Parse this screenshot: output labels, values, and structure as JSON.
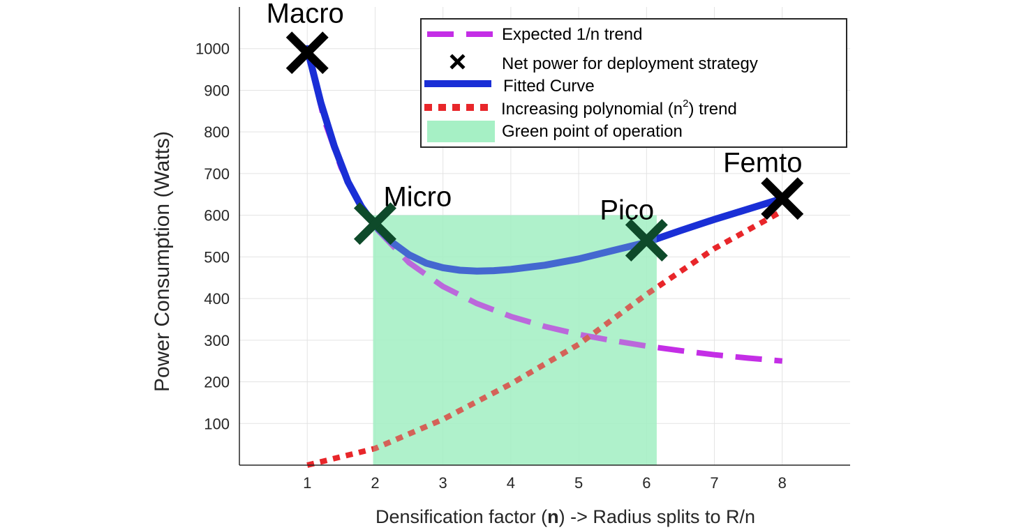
{
  "chart_data": {
    "type": "line",
    "xlabel_parts": [
      "Densification factor (",
      "n",
      ") -> Radius splits to R/n"
    ],
    "ylabel": "Power Consumption (Watts)",
    "xlim": [
      0,
      9
    ],
    "ylim": [
      0,
      1100
    ],
    "xticks": [
      1,
      2,
      3,
      4,
      5,
      6,
      7,
      8
    ],
    "yticks": [
      100,
      200,
      300,
      400,
      500,
      600,
      700,
      800,
      900,
      1000
    ],
    "grid": true,
    "legend_position": "top-right",
    "series": [
      {
        "name": "Expected 1/n trend",
        "style": "dashed",
        "color": "#c42ee6",
        "x": [
          1,
          1.25,
          1.5,
          1.75,
          2,
          2.5,
          3,
          3.5,
          4,
          4.5,
          5,
          5.5,
          6,
          6.5,
          7,
          7.5,
          8
        ],
        "y": [
          1000,
          829,
          714,
          633,
          571,
          486,
          429,
          388,
          357,
          333,
          314,
          299,
          286,
          275,
          265,
          257,
          250
        ]
      },
      {
        "name": "Net power for deployment strategy",
        "style": "marker-x",
        "color": "#000000",
        "x": [
          1,
          2,
          6,
          8
        ],
        "y": [
          990,
          580,
          540,
          640
        ],
        "labels": [
          "Macro",
          "Micro",
          "Pico",
          "Femto"
        ]
      },
      {
        "name": "Fitted Curve",
        "style": "solid",
        "color": "#1a2fd6",
        "x": [
          1,
          1.2,
          1.4,
          1.6,
          1.8,
          2,
          2.25,
          2.5,
          2.75,
          3,
          3.25,
          3.5,
          3.75,
          4,
          4.5,
          5,
          5.5,
          6,
          6.5,
          7,
          7.5,
          8
        ],
        "y": [
          1000,
          870,
          765,
          680,
          620,
          575,
          535,
          505,
          485,
          474,
          468,
          466,
          467,
          470,
          480,
          495,
          515,
          535,
          563,
          590,
          615,
          640
        ]
      },
      {
        "name_parts": [
          "Increasing polynomial (n",
          "2",
          ") trend"
        ],
        "style": "dotted",
        "color": "#e8262a",
        "x": [
          1,
          2,
          3,
          4,
          5,
          6,
          7,
          8
        ],
        "y": [
          0,
          40,
          110,
          195,
          290,
          410,
          520,
          610
        ]
      }
    ],
    "region": {
      "name": "Green point of operation",
      "color": "#a6f0c5",
      "x": [
        1.97,
        6.15
      ],
      "y": [
        0,
        600
      ]
    },
    "colors": {
      "dashed_series": "#c42ee6",
      "fitted_series": "#1a2fd6",
      "dotted_series": "#e8262a",
      "region_fill": "#a6f0c5",
      "marker_black": "#000000",
      "marker_green": "#0e4a2a"
    }
  }
}
